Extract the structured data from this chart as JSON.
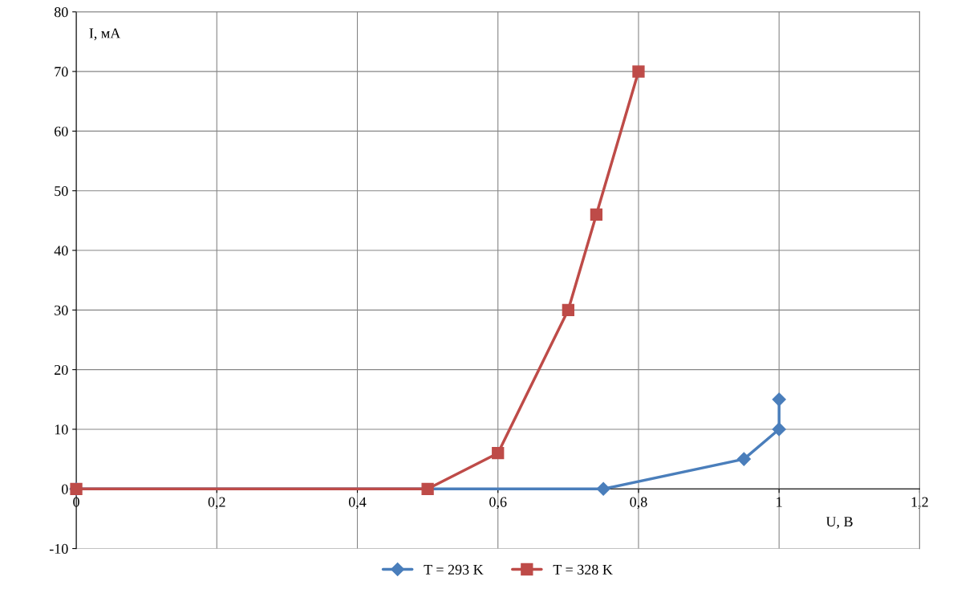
{
  "chart_data": {
    "type": "line",
    "xlabel": "U, В",
    "ylabel": "I, мА",
    "xlim": [
      0,
      1.2
    ],
    "ylim": [
      -10,
      80
    ],
    "xticks": [
      0,
      {
        "value": 0.2,
        "label": "0,2"
      },
      {
        "value": 0.4,
        "label": "0,4"
      },
      {
        "value": 0.6,
        "label": "0,6"
      },
      {
        "value": 0.8,
        "label": "0,8"
      },
      1,
      {
        "value": 1.2,
        "label": "1,2"
      }
    ],
    "yticks": [
      -10,
      0,
      10,
      20,
      30,
      40,
      50,
      60,
      70,
      80
    ],
    "grid": true,
    "legend": "bottom",
    "line_style": "solid",
    "series": [
      {
        "name": "T = 293 K",
        "color": "#4a7ebb",
        "marker": "diamond",
        "x": [
          0,
          0.75,
          0.95,
          1,
          1
        ],
        "values": [
          0,
          0,
          5,
          10,
          15
        ]
      },
      {
        "name": "T = 328 K",
        "color": "#be4b48",
        "marker": "square",
        "x": [
          0,
          0.5,
          0.6,
          0.7,
          0.74,
          0.8
        ],
        "values": [
          0,
          0,
          6,
          30,
          46,
          70
        ]
      }
    ]
  }
}
